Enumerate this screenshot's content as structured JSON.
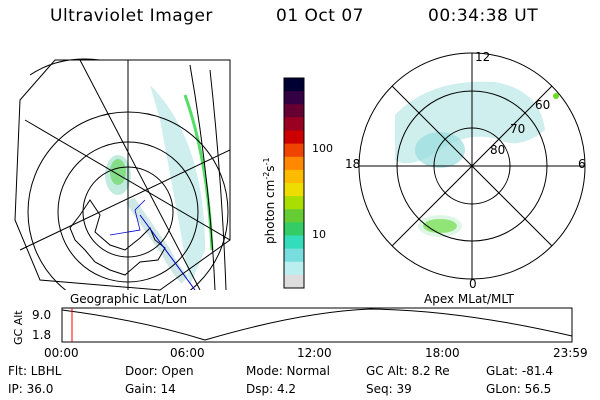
{
  "header": {
    "instrument": "Ultraviolet Imager",
    "date": "01 Oct 07",
    "time": "00:34:38 UT"
  },
  "left_panel": {
    "caption": "Geographic Lat/Lon"
  },
  "right_panel": {
    "caption": "Apex MLat/MLT",
    "mlt_labels": {
      "top": "12",
      "left": "18",
      "right": "6",
      "bottom": "0"
    },
    "lat_labels": [
      "60",
      "70",
      "80"
    ]
  },
  "colorbar": {
    "unit_label": "photon cm",
    "unit_sup1": "-2",
    "unit_mid": "s",
    "unit_sup2": "-1",
    "ticks": [
      "100",
      "10"
    ],
    "colors": [
      "#000033",
      "#330044",
      "#660033",
      "#990022",
      "#cc0000",
      "#ee4400",
      "#ff8800",
      "#ffbb00",
      "#eedd00",
      "#aadd00",
      "#66cc33",
      "#33cc66",
      "#33ddbb",
      "#77dddd",
      "#bbeeee",
      "#dddddd"
    ]
  },
  "timeline": {
    "ylabel": "GC Alt",
    "yticks": [
      "9.0",
      "1.8"
    ],
    "xticks": [
      "00:00",
      "06:00",
      "12:00",
      "18:00",
      "23:59"
    ],
    "cursor_color": "#ff0000"
  },
  "info": {
    "flt": "Flt: LBHL",
    "ip": "IP: 36.0",
    "door": "Door: Open",
    "gain": "Gain: 14",
    "mode": "Mode: Normal",
    "dsp": "Dsp:     4.2",
    "gcalt": "GC Alt: 8.2 Re",
    "seq": "Seq: 39",
    "glat": "GLat:  -81.4",
    "glon": "GLon:  56.5"
  }
}
